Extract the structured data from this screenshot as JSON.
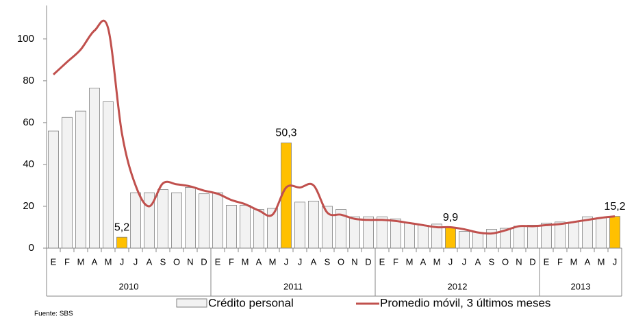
{
  "chart_data": {
    "type": "bar-line",
    "categories": [
      "E",
      "F",
      "M",
      "A",
      "M",
      "J",
      "J",
      "A",
      "S",
      "O",
      "N",
      "D",
      "E",
      "F",
      "M",
      "A",
      "M",
      "J",
      "J",
      "A",
      "S",
      "O",
      "N",
      "D",
      "E",
      "F",
      "M",
      "A",
      "M",
      "J",
      "J",
      "A",
      "S",
      "O",
      "N",
      "D",
      "E",
      "F",
      "M",
      "A",
      "M",
      "J"
    ],
    "groups": [
      {
        "label": "2010",
        "count": 12
      },
      {
        "label": "2011",
        "count": 12
      },
      {
        "label": "2012",
        "count": 12
      },
      {
        "label": "2013",
        "count": 6
      }
    ],
    "series": [
      {
        "name": "Crédito personal",
        "type": "bar",
        "color": "#f2f2f2",
        "colors": [
          "#f2f2f2",
          "#f2f2f2",
          "#f2f2f2",
          "#f2f2f2",
          "#f2f2f2",
          "#ffc000",
          "#f2f2f2",
          "#f2f2f2",
          "#f2f2f2",
          "#f2f2f2",
          "#f2f2f2",
          "#f2f2f2",
          "#f2f2f2",
          "#f2f2f2",
          "#f2f2f2",
          "#f2f2f2",
          "#f2f2f2",
          "#ffc000",
          "#f2f2f2",
          "#f2f2f2",
          "#f2f2f2",
          "#f2f2f2",
          "#f2f2f2",
          "#f2f2f2",
          "#f2f2f2",
          "#f2f2f2",
          "#f2f2f2",
          "#f2f2f2",
          "#f2f2f2",
          "#ffc000",
          "#f2f2f2",
          "#f2f2f2",
          "#f2f2f2",
          "#f2f2f2",
          "#f2f2f2",
          "#f2f2f2",
          "#f2f2f2",
          "#f2f2f2",
          "#f2f2f2",
          "#f2f2f2",
          "#f2f2f2",
          "#ffc000"
        ],
        "values": [
          56,
          62.5,
          65.5,
          76.5,
          70,
          5.2,
          26.5,
          26.5,
          28,
          26.5,
          29,
          26,
          26.5,
          20.5,
          20.5,
          18.5,
          19,
          50.3,
          22,
          22.5,
          20,
          18.5,
          15,
          15,
          15,
          14,
          12,
          11,
          11.5,
          9.9,
          8,
          7.5,
          9,
          9.5,
          10.5,
          11,
          12,
          12.5,
          12.5,
          15,
          14.5,
          15.2
        ],
        "value_labels": [
          null,
          null,
          null,
          null,
          null,
          "5,2",
          null,
          null,
          null,
          null,
          null,
          null,
          null,
          null,
          null,
          null,
          null,
          "50,3",
          null,
          null,
          null,
          null,
          null,
          null,
          null,
          null,
          null,
          null,
          null,
          "9,9",
          null,
          null,
          null,
          null,
          null,
          null,
          null,
          null,
          null,
          null,
          null,
          "15,2"
        ]
      },
      {
        "name": "Promedio móvil, 3 últimos meses",
        "type": "line",
        "color": "#c0504d",
        "values": [
          83,
          89,
          95,
          104,
          105,
          55,
          30,
          20,
          31,
          30.5,
          29.5,
          27.5,
          26,
          23,
          21,
          18,
          16,
          29,
          29,
          30,
          17,
          16,
          14,
          13.5,
          13.5,
          13,
          12,
          11,
          10,
          10,
          9,
          7.5,
          7,
          8.5,
          10.5,
          10.5,
          11,
          11.5,
          12.5,
          13.5,
          14.5,
          15.2
        ]
      }
    ],
    "ylim": [
      0,
      116
    ],
    "yticks": [
      0,
      20,
      40,
      60,
      80,
      100
    ],
    "source": "Fuente: SBS"
  }
}
